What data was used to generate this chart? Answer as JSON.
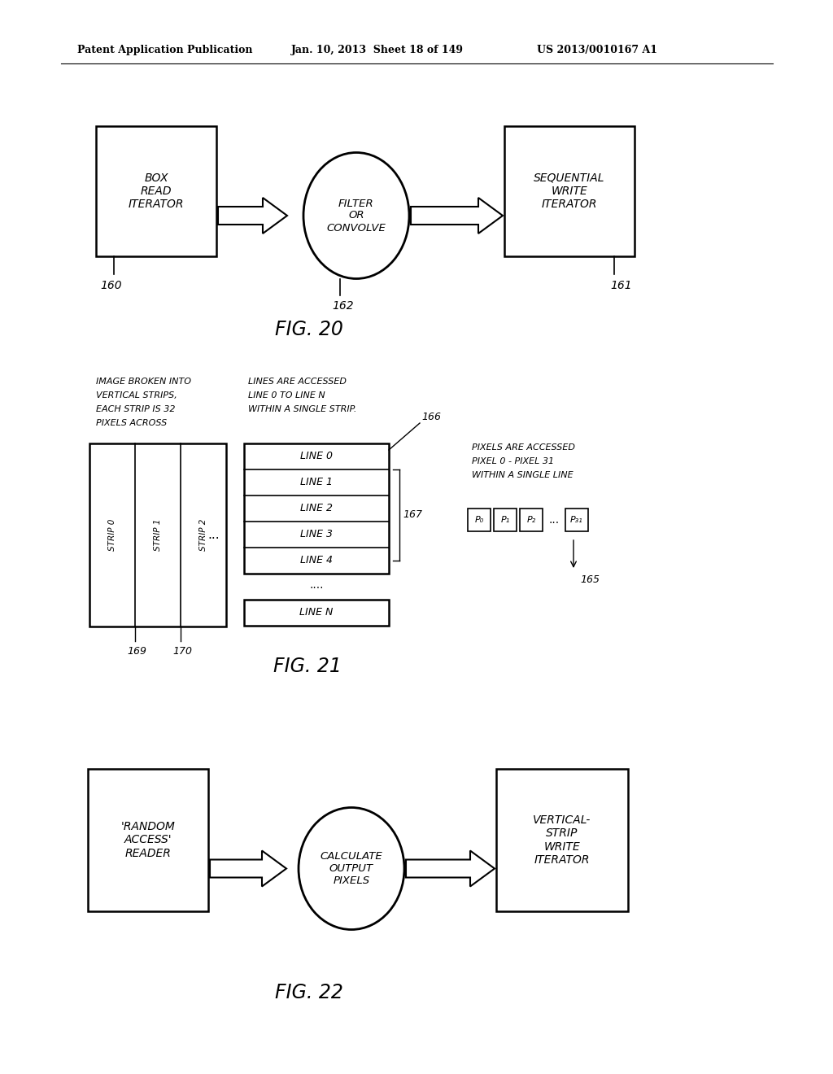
{
  "header_left": "Patent Application Publication",
  "header_mid": "Jan. 10, 2013  Sheet 18 of 149",
  "header_right": "US 2013/0010167 A1",
  "bg_color": "#ffffff",
  "fig20": {
    "title": "FIG. 20",
    "box1_label": "BOX\nREAD\nITERATOR",
    "box1_ref": "160",
    "ellipse_label": "FILTER\nOR\nCONVOLVE",
    "ellipse_ref": "162",
    "box2_label": "SEQUENTIAL\nWRITE\nITERATOR",
    "box2_ref": "161"
  },
  "fig21": {
    "title": "FIG. 21",
    "note1": [
      "IMAGE BROKEN INTO",
      "VERTICAL STRIPS,",
      "EACH STRIP IS 32",
      "PIXELS ACROSS"
    ],
    "note2": [
      "LINES ARE ACCESSED",
      "LINE 0 TO LINE N",
      "WITHIN A SINGLE STRIP."
    ],
    "note3": [
      "PIXELS ARE ACCESSED",
      "PIXEL 0 - PIXEL 31",
      "WITHIN A SINGLE LINE"
    ],
    "strip_labels": [
      "STRIP 0",
      "STRIP 1",
      "STRIP 2"
    ],
    "strip_refs": [
      "169",
      "170"
    ],
    "line_labels": [
      "LINE 0",
      "LINE 1",
      "LINE 2",
      "LINE 3",
      "LINE 4"
    ],
    "line_n": "LINE N",
    "ref166": "166",
    "ref167": "167",
    "ref165": "165"
  },
  "fig22": {
    "title": "FIG. 22",
    "box1_label": "'RANDOM\nACCESS'\nREADER",
    "ellipse_label": "CALCULATE\nOUTPUT\nPIXELS",
    "box2_label": "VERTICAL-\nSTRIP\nWRITE\nITERATOR"
  }
}
